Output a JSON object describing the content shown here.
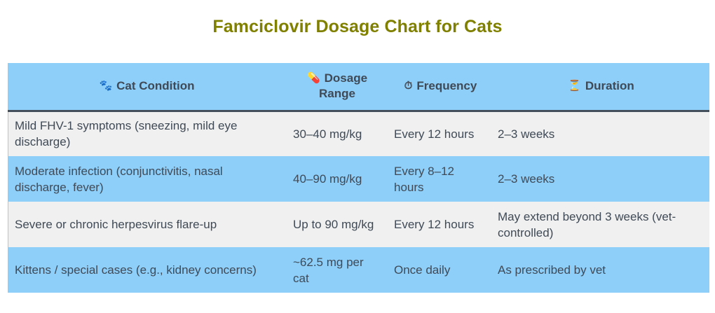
{
  "title": "Famciclovir Dosage Chart for Cats",
  "table": {
    "headers": [
      {
        "icon": "🐾",
        "icon_name": "paw-prints-icon",
        "label": "Cat Condition"
      },
      {
        "icon": "💊",
        "icon_name": "pill-icon",
        "label": "Dosage Range"
      },
      {
        "icon": "⏱",
        "icon_name": "stopwatch-icon",
        "label": "Frequency"
      },
      {
        "icon": "⏳",
        "icon_name": "hourglass-icon",
        "label": "Duration"
      }
    ],
    "rows": [
      {
        "condition": "Mild FHV-1 symptoms (sneezing, mild eye discharge)",
        "dosage": "30–40 mg/kg",
        "frequency": "Every 12 hours",
        "duration": "2–3 weeks"
      },
      {
        "condition": "Moderate infection (conjunctivitis, nasal discharge, fever)",
        "dosage": "40–90 mg/kg",
        "frequency": "Every 8–12 hours",
        "duration": "2–3 weeks"
      },
      {
        "condition": "Severe or chronic herpesvirus flare-up",
        "dosage": "Up to 90 mg/kg",
        "frequency": "Every 12 hours",
        "duration": "May extend beyond 3 weeks (vet-controlled)"
      },
      {
        "condition": "Kittens / special cases (e.g., kidney concerns)",
        "dosage": "~62.5 mg per cat",
        "frequency": "Once daily",
        "duration": "As prescribed by vet"
      }
    ]
  },
  "colors": {
    "title": "#7f7f00",
    "header_bg": "#8ecffa",
    "header_border": "#44505c",
    "row_light": "#f0f0f0",
    "row_blue": "#8ecffa",
    "text": "#3f4a56"
  }
}
